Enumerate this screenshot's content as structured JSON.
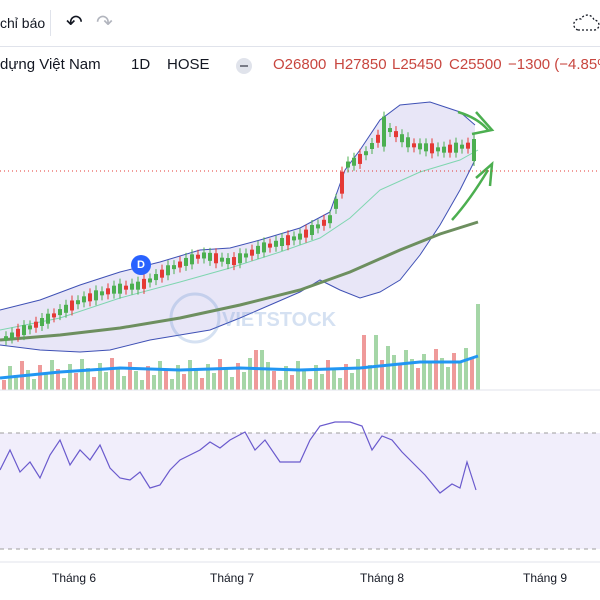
{
  "toolbar": {
    "indicators_label": "chỉ báo",
    "undo_icon": "undo-icon",
    "redo_icon": "redo-icon",
    "cloud_icon": "cloud-save-icon"
  },
  "legend": {
    "symbol_name": "dựng Việt Nam",
    "interval": "1D",
    "exchange": "HOSE",
    "open": "O26800",
    "high": "H27850",
    "low": "L25450",
    "close": "C25500",
    "change": "−1300 (−4.85%"
  },
  "watermark": "VIETSTOCK",
  "marker_label": "D",
  "chart_data": [
    {
      "type": "candlestick",
      "time_axis": [
        "Tháng 6",
        "Tháng 7",
        "Tháng 8",
        "Tháng 9"
      ],
      "series": [
        {
          "name": "price",
          "values_description": "daily OHLC",
          "last": {
            "open": 26800,
            "high": 27850,
            "low": 25450,
            "close": 25500
          }
        },
        {
          "name": "volume",
          "type": "bar"
        },
        {
          "name": "rsi",
          "type": "line"
        }
      ],
      "colors": {
        "up": "#4caf50",
        "down": "#e53935",
        "bands": "#3f51b5",
        "band_fill": "#e8e6f7",
        "ma_long": "#6d8f5f",
        "ma_short": "#7fd6b0",
        "volume_ma": "#2196f3",
        "rsi": "#6a5acd",
        "arrows": "#4caf50"
      }
    }
  ]
}
